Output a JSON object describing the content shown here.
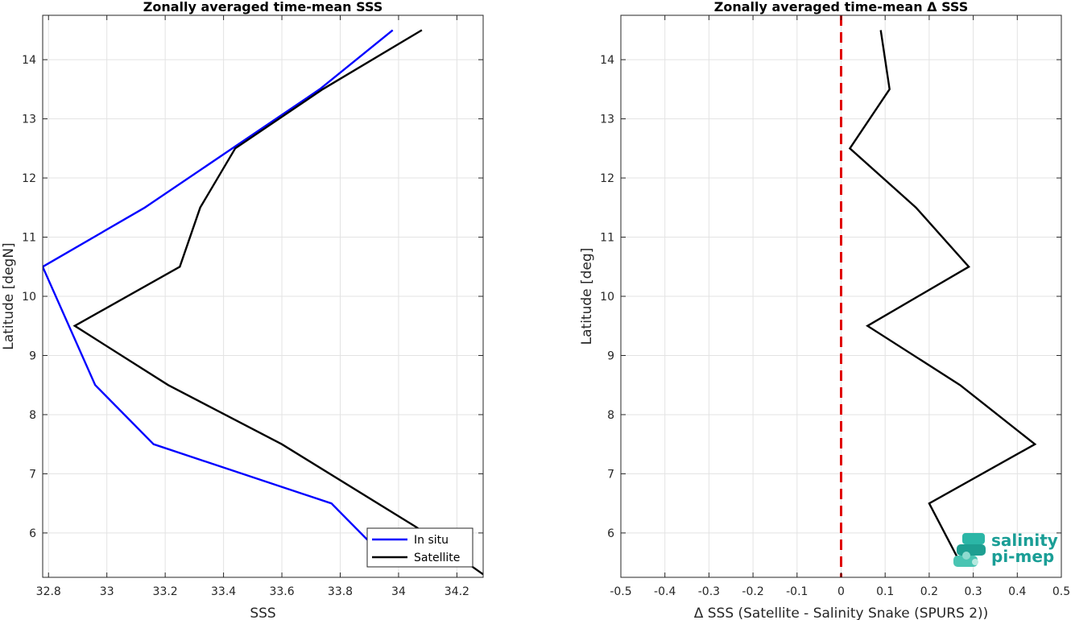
{
  "chart_data": [
    {
      "type": "line",
      "title": "Zonally averaged time-mean SSS",
      "xlabel": "SSS",
      "ylabel": "Latitude [degN]",
      "xlim": [
        32.78,
        34.29
      ],
      "ylim": [
        5.25,
        14.75
      ],
      "xticks": [
        32.8,
        33.0,
        33.2,
        33.4,
        33.6,
        33.8,
        34.0,
        34.2
      ],
      "xtick_labels": [
        "32.8",
        "33",
        "33.2",
        "33.4",
        "33.6",
        "33.8",
        "34",
        "34.2"
      ],
      "yticks": [
        6,
        7,
        8,
        9,
        10,
        11,
        12,
        13,
        14
      ],
      "ytick_labels": [
        "6",
        "7",
        "8",
        "9",
        "10",
        "11",
        "12",
        "13",
        "14"
      ],
      "grid": true,
      "legend_position": "bottom-right",
      "series": [
        {
          "name": "In situ",
          "color": "#0000ff",
          "x": [
            33.9,
            33.77,
            33.16,
            32.96,
            32.78,
            33.13,
            33.43,
            33.73,
            33.98
          ],
          "y": [
            5.85,
            6.5,
            7.5,
            8.5,
            10.5,
            11.5,
            12.5,
            13.5,
            14.5
          ]
        },
        {
          "name": "Satellite",
          "color": "#000000",
          "x": [
            34.29,
            34.06,
            33.6,
            33.21,
            32.89,
            33.25,
            33.32,
            33.44,
            33.74,
            34.08
          ],
          "y": [
            5.3,
            6.1,
            7.5,
            8.5,
            9.5,
            10.5,
            11.5,
            12.5,
            13.5,
            14.5
          ]
        }
      ]
    },
    {
      "type": "line",
      "title": "Zonally averaged time-mean Δ SSS",
      "xlabel": "Δ SSS (Satellite - Salinity Snake (SPURS 2))",
      "ylabel": "Latitude [deg]",
      "xlim": [
        -0.5,
        0.5
      ],
      "ylim": [
        5.25,
        14.75
      ],
      "xticks": [
        -0.5,
        -0.4,
        -0.3,
        -0.2,
        -0.1,
        0,
        0.1,
        0.2,
        0.3,
        0.4,
        0.5
      ],
      "xtick_labels": [
        "-0.5",
        "-0.4",
        "-0.3",
        "-0.2",
        "-0.1",
        "0",
        "0.1",
        "0.2",
        "0.3",
        "0.4",
        "0.5"
      ],
      "yticks": [
        6,
        7,
        8,
        9,
        10,
        11,
        12,
        13,
        14
      ],
      "ytick_labels": [
        "6",
        "7",
        "8",
        "9",
        "10",
        "11",
        "12",
        "13",
        "14"
      ],
      "grid": true,
      "zero_line_color": "#e00000",
      "series": [
        {
          "color": "#000000",
          "x": [
            0.27,
            0.2,
            0.44,
            0.27,
            0.06,
            0.29,
            0.17,
            0.02,
            0.11,
            0.09
          ],
          "y": [
            5.5,
            6.5,
            7.5,
            8.5,
            9.5,
            10.5,
            11.5,
            12.5,
            13.5,
            14.5
          ]
        }
      ]
    }
  ],
  "logo": {
    "line1": "salinity",
    "line2": "pi-mep",
    "color": "#1a9e96"
  }
}
